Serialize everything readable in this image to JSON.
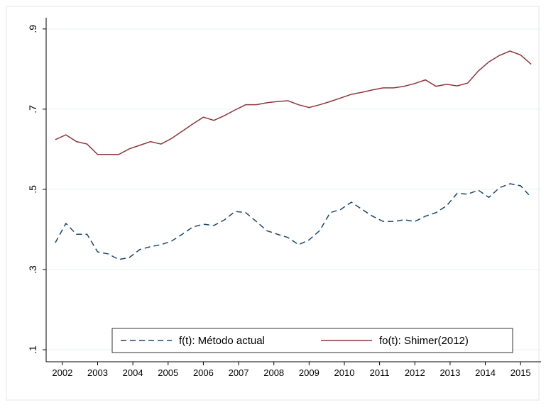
{
  "chart_data": {
    "type": "line",
    "x": [
      2001.8,
      2002.1,
      2002.4,
      2002.7,
      2003,
      2003.3,
      2003.6,
      2003.9,
      2004.2,
      2004.5,
      2004.8,
      2005.1,
      2005.4,
      2005.7,
      2006,
      2006.3,
      2006.6,
      2006.9,
      2007.2,
      2007.5,
      2007.8,
      2008.1,
      2008.4,
      2008.7,
      2009,
      2009.3,
      2009.6,
      2009.9,
      2010.2,
      2010.5,
      2010.8,
      2011.1,
      2011.4,
      2011.7,
      2012,
      2012.3,
      2012.6,
      2012.9,
      2013.2,
      2013.5,
      2013.8,
      2014.1,
      2014.4,
      2014.7,
      2015,
      2015.3
    ],
    "series": [
      {
        "name": "f(t): Método actual",
        "color": "#1a476f",
        "style": "dashed",
        "values": [
          0.367,
          0.415,
          0.388,
          0.388,
          0.344,
          0.339,
          0.325,
          0.33,
          0.35,
          0.357,
          0.362,
          0.371,
          0.388,
          0.406,
          0.413,
          0.41,
          0.424,
          0.445,
          0.442,
          0.42,
          0.397,
          0.388,
          0.38,
          0.362,
          0.374,
          0.397,
          0.442,
          0.45,
          0.468,
          0.45,
          0.433,
          0.42,
          0.42,
          0.424,
          0.42,
          0.433,
          0.442,
          0.459,
          0.49,
          0.488,
          0.498,
          0.48,
          0.504,
          0.514,
          0.509,
          0.48
        ]
      },
      {
        "name": "fo(t): Shimer(2012)",
        "color": "#90353b",
        "style": "solid",
        "values": [
          0.624,
          0.636,
          0.619,
          0.613,
          0.587,
          0.587,
          0.587,
          0.601,
          0.61,
          0.619,
          0.613,
          0.627,
          0.645,
          0.663,
          0.68,
          0.672,
          0.684,
          0.698,
          0.711,
          0.711,
          0.716,
          0.719,
          0.721,
          0.711,
          0.704,
          0.711,
          0.719,
          0.728,
          0.737,
          0.742,
          0.748,
          0.753,
          0.753,
          0.757,
          0.764,
          0.773,
          0.757,
          0.762,
          0.758,
          0.765,
          0.795,
          0.818,
          0.834,
          0.845,
          0.835,
          0.812
        ]
      }
    ],
    "xlim": [
      2001.54,
      2015.58
    ],
    "xticks": [
      2002,
      2003,
      2004,
      2005,
      2006,
      2007,
      2008,
      2009,
      2010,
      2011,
      2012,
      2013,
      2014,
      2015
    ],
    "ylim": [
      0.07,
      0.928
    ],
    "yticks": [
      {
        "value": 0.1,
        "label": ".1"
      },
      {
        "value": 0.3,
        "label": ".3"
      },
      {
        "value": 0.5,
        "label": ".5"
      },
      {
        "value": 0.7,
        "label": ".7"
      },
      {
        "value": 0.9,
        "label": ".9"
      }
    ],
    "grid": true,
    "legend": "bottom"
  }
}
